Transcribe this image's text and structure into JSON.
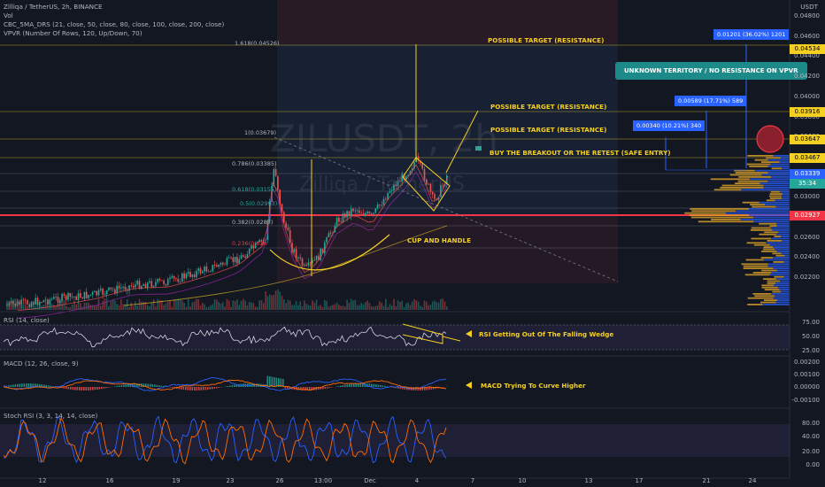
{
  "header": {
    "symbol_line": "Zilliqa / TetherUS, 2h, BINANCE",
    "vol": "Vol",
    "cbc": "CBC_5MA_DRS (21, close, 50, close, 80, close, 100, close, 200, close)",
    "vpvr": "VPVR (Number Of Rows, 120, Up/Down, 70)",
    "currency": "USDT"
  },
  "watermark": {
    "ticker": "ZILUSDT, 2h",
    "name": "Zilliqa / TetherUS"
  },
  "annotations": {
    "target1": "POSSIBLE TARGET (RESISTANCE)",
    "target2": "POSSIBLE TARGET (RESISTANCE)",
    "target3": "POSSIBLE TARGET (RESISTANCE)",
    "buy": "BUY THE BREAKOUT OR THE RETEST (SAFE ENTRY)",
    "cup": "CUP AND HANDLE",
    "unknown": "UNKNOWN TERRITORY / NO RESISTANCE ON VPVR",
    "rsi_note": "RSI Getting Out Of The Falling Wedge",
    "macd_note": "MACD Trying To Curve Higher"
  },
  "measure_boxes": {
    "big": "0.01201 (36.02%) 1201",
    "mid": "0.00589 (17.71%) 589",
    "small": "0.00340 (10.21%) 340"
  },
  "fib": {
    "f1618": "1.618(0.04526)",
    "f1": "1(0.03679)",
    "f786": "0.786(0.03385)",
    "f618": "0.618(0.03155)",
    "f5": "0.5(0.02993)",
    "f382": "0.382(0.0283)",
    "f236": "0.236(0.026"
  },
  "price_labels": {
    "p04534": "0.04534",
    "p03916": "0.03916",
    "p03647": "0.03647",
    "p03467": "0.03467",
    "p03339": "0.03339",
    "p0334": "35:34",
    "p02927": "0.02927"
  },
  "y_ticks": [
    "0.04800",
    "0.04600",
    "0.04400",
    "0.04200",
    "0.04000",
    "0.03800",
    "0.03600",
    "0.03400",
    "0.03200",
    "0.03000",
    "0.02800",
    "0.02600",
    "0.02400",
    "0.02200"
  ],
  "rsi": {
    "label": "RSI (14, close)",
    "ticks": [
      "75.00",
      "50.00",
      "25.00"
    ]
  },
  "macd": {
    "label": "MACD (12, 26, close, 9)",
    "ticks": [
      "0.00200",
      "0.00100",
      "0.00000",
      "-0.00100"
    ]
  },
  "stoch": {
    "label": "Stoch RSI (3, 3, 14, 14, close)",
    "ticks": [
      "80.00",
      "40.00",
      "20.00",
      "0.00"
    ]
  },
  "x_ticks": [
    "12",
    "16",
    "19",
    "23",
    "26",
    "13:00",
    "Dec",
    "4",
    "7",
    "10",
    "13",
    "17",
    "21",
    "24"
  ],
  "colors": {
    "bg": "#131722",
    "up": "#26a69a",
    "down": "#ef5350",
    "fib": "#f5d020",
    "support": "#f23645",
    "accent": "#2962ff"
  }
}
